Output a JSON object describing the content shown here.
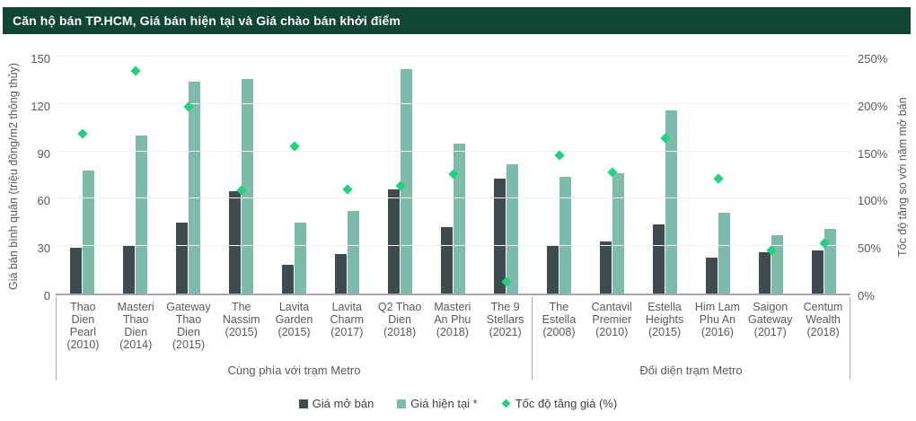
{
  "header": {
    "title": "Căn hộ bán TP.HCM, Giá bán hiện tại và Giá chào bán khởi điểm"
  },
  "colors": {
    "header_bg": "#104633",
    "bar_open": "#3e4c50",
    "bar_current": "#7dbcab",
    "growth_diamond": "#1fd37e",
    "grid": "#efefef",
    "axis_line": "#a6a6a6",
    "text": "#595959"
  },
  "chart_data": {
    "type": "bar",
    "title": "Căn hộ bán TP.HCM, Giá bán hiện tại và Giá chào bán khởi điểm",
    "ylabel_left": "Giá bán bình quân (triệu đồng/m2 thông thủy)",
    "ylabel_right": "Tốc độ tăng so với năm mở bán",
    "ylim_left": [
      0,
      150
    ],
    "ylim_right_pct": [
      0,
      250
    ],
    "yticks_left": [
      0,
      30,
      60,
      90,
      120,
      150
    ],
    "yticks_right": [
      0,
      50,
      100,
      150,
      200,
      250
    ],
    "grid": true,
    "legend_position": "bottom",
    "categories": [
      {
        "label": "Thao Dien Pearl (2010)",
        "lines": [
          "Thao",
          "Dien",
          "Pearl",
          "(2010)"
        ]
      },
      {
        "label": "Masteri Thao Dien (2014)",
        "lines": [
          "Masteri",
          "Thao",
          "Dien",
          "(2014)"
        ]
      },
      {
        "label": "Gateway Thao Dien (2015)",
        "lines": [
          "Gateway",
          "Thao",
          "Dien",
          "(2015)"
        ]
      },
      {
        "label": "The Nassim (2015)",
        "lines": [
          "The",
          "Nassim",
          "(2015)"
        ]
      },
      {
        "label": "Lavita Garden (2015)",
        "lines": [
          "Lavita",
          "Garden",
          "(2015)"
        ]
      },
      {
        "label": "Lavita Charm (2017)",
        "lines": [
          "Lavita",
          "Charm",
          "(2017)"
        ]
      },
      {
        "label": "Q2 Thao Dien (2018)",
        "lines": [
          "Q2 Thao",
          "Dien",
          "(2018)"
        ]
      },
      {
        "label": "Masteri An Phu (2018)",
        "lines": [
          "Masteri",
          "An Phu",
          "(2018)"
        ]
      },
      {
        "label": "The 9 Stellars (2021)",
        "lines": [
          "The 9",
          "Stellars",
          "(2021)"
        ]
      },
      {
        "label": "The Estella (2008)",
        "lines": [
          "The",
          "Estella",
          "(2008)"
        ]
      },
      {
        "label": "Cantavil Premier (2010)",
        "lines": [
          "Cantavil",
          "Premier",
          "(2010)"
        ]
      },
      {
        "label": "Estella Heights (2015)",
        "lines": [
          "Estella",
          "Heights",
          "(2015)"
        ]
      },
      {
        "label": "Him Lam Phu An (2016)",
        "lines": [
          "Him Lam",
          "Phu An",
          "(2016)"
        ]
      },
      {
        "label": "Saigon Gateway (2017)",
        "lines": [
          "Saigon",
          "Gateway",
          "(2017)"
        ]
      },
      {
        "label": "Centum Wealth (2018)",
        "lines": [
          "Centum",
          "Wealth",
          "(2018)"
        ]
      }
    ],
    "groups": [
      {
        "label": "Cùng phía với trạm Metro",
        "count": 9
      },
      {
        "label": "Đối diện trạm Metro",
        "count": 6
      }
    ],
    "series": [
      {
        "name": "Giá mở bán",
        "type": "bar",
        "axis": "left",
        "unit": "triệu đồng/m2",
        "values": [
          29,
          30,
          45,
          65,
          18,
          25,
          66,
          42,
          73,
          30,
          33,
          44,
          23,
          26,
          27
        ]
      },
      {
        "name": "Giá hiện tại *",
        "type": "bar",
        "axis": "left",
        "unit": "triệu đồng/m2",
        "values": [
          78,
          100,
          134,
          136,
          45,
          52,
          142,
          95,
          82,
          74,
          76,
          116,
          51,
          37,
          41
        ]
      },
      {
        "name": "Tốc độ tăng giá (%)",
        "type": "scatter",
        "marker": "diamond",
        "axis": "right",
        "unit": "%",
        "values": [
          169,
          235,
          197,
          109,
          155,
          110,
          114,
          126,
          12,
          146,
          128,
          164,
          121,
          45,
          53
        ]
      }
    ]
  }
}
